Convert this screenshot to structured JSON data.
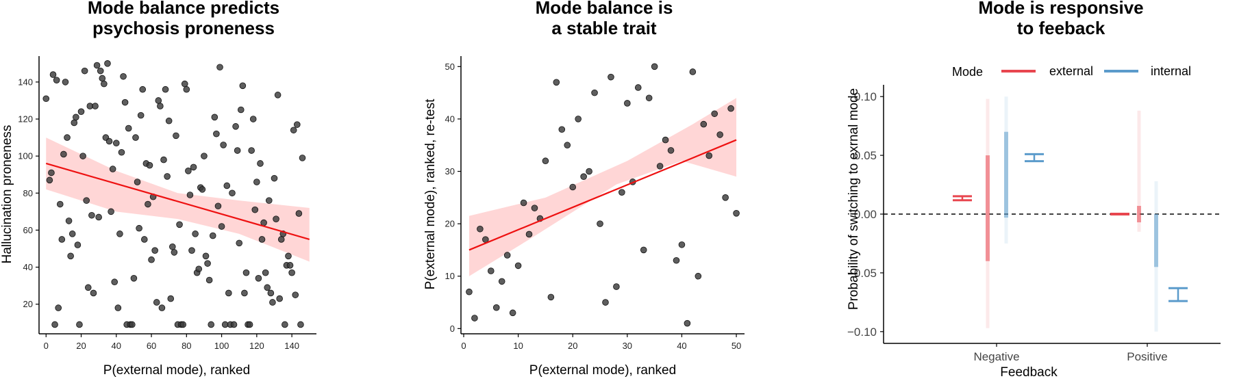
{
  "chart_data": [
    {
      "type": "scatter",
      "title": [
        "Mode balance predicts",
        "psychosis proneness"
      ],
      "xlabel": "P(external mode), ranked",
      "ylabel": "Hallucination proneness",
      "xlim": [
        -4,
        154
      ],
      "ylim": [
        4,
        154
      ],
      "xticks": [
        0,
        20,
        40,
        60,
        80,
        100,
        120,
        140
      ],
      "yticks": [
        20,
        40,
        60,
        80,
        100,
        120,
        140
      ],
      "points": [
        [
          0,
          131
        ],
        [
          2,
          87
        ],
        [
          3,
          91
        ],
        [
          4,
          144
        ],
        [
          5,
          9
        ],
        [
          6,
          141
        ],
        [
          7,
          18
        ],
        [
          8,
          74
        ],
        [
          9,
          55
        ],
        [
          10,
          101
        ],
        [
          11,
          140
        ],
        [
          12,
          110
        ],
        [
          13,
          65
        ],
        [
          14,
          46
        ],
        [
          15,
          58
        ],
        [
          16,
          118
        ],
        [
          17,
          121
        ],
        [
          18,
          52
        ],
        [
          19,
          9
        ],
        [
          20,
          124
        ],
        [
          21,
          100
        ],
        [
          22,
          146
        ],
        [
          23,
          76
        ],
        [
          24,
          29
        ],
        [
          25,
          127
        ],
        [
          26,
          68
        ],
        [
          27,
          26
        ],
        [
          28,
          127
        ],
        [
          29,
          149
        ],
        [
          30,
          67
        ],
        [
          31,
          146
        ],
        [
          32,
          142
        ],
        [
          33,
          139
        ],
        [
          34,
          110
        ],
        [
          35,
          150
        ],
        [
          36,
          108
        ],
        [
          37,
          70
        ],
        [
          38,
          93
        ],
        [
          39,
          32
        ],
        [
          40,
          107
        ],
        [
          41,
          18
        ],
        [
          42,
          58
        ],
        [
          43,
          102
        ],
        [
          44,
          143
        ],
        [
          45,
          129
        ],
        [
          46,
          9
        ],
        [
          47,
          115
        ],
        [
          48,
          9
        ],
        [
          49,
          9
        ],
        [
          50,
          34
        ],
        [
          51,
          110
        ],
        [
          52,
          86
        ],
        [
          53,
          61
        ],
        [
          54,
          122
        ],
        [
          55,
          136
        ],
        [
          56,
          55
        ],
        [
          57,
          96
        ],
        [
          58,
          74
        ],
        [
          59,
          95
        ],
        [
          60,
          44
        ],
        [
          61,
          78
        ],
        [
          62,
          49
        ],
        [
          63,
          21
        ],
        [
          64,
          130
        ],
        [
          65,
          127
        ],
        [
          66,
          18
        ],
        [
          67,
          98
        ],
        [
          68,
          136
        ],
        [
          69,
          89
        ],
        [
          70,
          119
        ],
        [
          71,
          23
        ],
        [
          72,
          51
        ],
        [
          73,
          48
        ],
        [
          74,
          111
        ],
        [
          75,
          9
        ],
        [
          76,
          63
        ],
        [
          77,
          9
        ],
        [
          78,
          9
        ],
        [
          79,
          139
        ],
        [
          80,
          136
        ],
        [
          81,
          92
        ],
        [
          82,
          79
        ],
        [
          83,
          49
        ],
        [
          84,
          94
        ],
        [
          85,
          58
        ],
        [
          86,
          37
        ],
        [
          87,
          39
        ],
        [
          88,
          83
        ],
        [
          89,
          82
        ],
        [
          90,
          100
        ],
        [
          91,
          46
        ],
        [
          92,
          42
        ],
        [
          93,
          33
        ],
        [
          94,
          9
        ],
        [
          95,
          57
        ],
        [
          96,
          121
        ],
        [
          97,
          112
        ],
        [
          98,
          73
        ],
        [
          99,
          148
        ],
        [
          100,
          62
        ],
        [
          101,
          106
        ],
        [
          102,
          9
        ],
        [
          103,
          84
        ],
        [
          104,
          26
        ],
        [
          105,
          9
        ],
        [
          106,
          80
        ],
        [
          107,
          9
        ],
        [
          108,
          116
        ],
        [
          109,
          103
        ],
        [
          110,
          53
        ],
        [
          111,
          125
        ],
        [
          112,
          138
        ],
        [
          113,
          26
        ],
        [
          114,
          37
        ],
        [
          115,
          9
        ],
        [
          116,
          9
        ],
        [
          117,
          103
        ],
        [
          118,
          120
        ],
        [
          119,
          71
        ],
        [
          120,
          86
        ],
        [
          121,
          34
        ],
        [
          122,
          96
        ],
        [
          123,
          55
        ],
        [
          124,
          64
        ],
        [
          125,
          37
        ],
        [
          126,
          29
        ],
        [
          127,
          76
        ],
        [
          128,
          26
        ],
        [
          129,
          21
        ],
        [
          130,
          88
        ],
        [
          131,
          66
        ],
        [
          132,
          133
        ],
        [
          133,
          23
        ],
        [
          134,
          55
        ],
        [
          135,
          58
        ],
        [
          136,
          9
        ],
        [
          137,
          41
        ],
        [
          138,
          46
        ],
        [
          139,
          41
        ],
        [
          140,
          37
        ],
        [
          141,
          114
        ],
        [
          142,
          25
        ],
        [
          143,
          117
        ],
        [
          144,
          69
        ],
        [
          145,
          9
        ],
        [
          146,
          99
        ]
      ],
      "fit": {
        "x": [
          0,
          150
        ],
        "y": [
          96,
          55
        ]
      },
      "ci_upper": [
        [
          0,
          110
        ],
        [
          40,
          92
        ],
        [
          75,
          80
        ],
        [
          110,
          76
        ],
        [
          150,
          72
        ]
      ],
      "ci_lower": [
        [
          0,
          82
        ],
        [
          40,
          70
        ],
        [
          75,
          66
        ],
        [
          110,
          58
        ],
        [
          150,
          43
        ]
      ]
    },
    {
      "type": "scatter",
      "title": [
        "Mode balance is",
        "a stable trait"
      ],
      "xlabel": "P(external mode), ranked",
      "ylabel": "P(external mode), ranked, re-test",
      "xlim": [
        -0.5,
        51.5
      ],
      "ylim": [
        -1,
        52
      ],
      "xticks": [
        0,
        10,
        20,
        30,
        40,
        50
      ],
      "yticks": [
        0,
        10,
        20,
        30,
        40,
        50
      ],
      "points": [
        [
          1,
          7
        ],
        [
          2,
          2
        ],
        [
          3,
          19
        ],
        [
          4,
          17
        ],
        [
          5,
          11
        ],
        [
          6,
          4
        ],
        [
          7,
          9
        ],
        [
          8,
          14
        ],
        [
          9,
          3
        ],
        [
          10,
          12
        ],
        [
          11,
          24
        ],
        [
          12,
          18
        ],
        [
          13,
          23
        ],
        [
          14,
          21
        ],
        [
          15,
          32
        ],
        [
          16,
          6
        ],
        [
          17,
          47
        ],
        [
          18,
          38
        ],
        [
          19,
          35
        ],
        [
          20,
          27
        ],
        [
          21,
          40
        ],
        [
          22,
          29
        ],
        [
          23,
          30
        ],
        [
          24,
          45
        ],
        [
          25,
          20
        ],
        [
          26,
          5
        ],
        [
          27,
          48
        ],
        [
          28,
          8
        ],
        [
          29,
          26
        ],
        [
          30,
          43
        ],
        [
          31,
          28
        ],
        [
          32,
          46
        ],
        [
          33,
          15
        ],
        [
          34,
          44
        ],
        [
          35,
          50
        ],
        [
          36,
          31
        ],
        [
          37,
          36
        ],
        [
          38,
          34
        ],
        [
          39,
          13
        ],
        [
          40,
          16
        ],
        [
          41,
          1
        ],
        [
          42,
          49
        ],
        [
          43,
          10
        ],
        [
          44,
          39
        ],
        [
          45,
          33
        ],
        [
          46,
          41
        ],
        [
          47,
          37
        ],
        [
          48,
          25
        ],
        [
          49,
          42
        ],
        [
          50,
          22
        ]
      ],
      "fit": {
        "x": [
          1,
          50
        ],
        "y": [
          15,
          36
        ]
      },
      "ci_upper": [
        [
          1,
          21.5
        ],
        [
          15,
          25
        ],
        [
          30,
          32
        ],
        [
          42,
          39
        ],
        [
          50,
          44
        ]
      ],
      "ci_lower": [
        [
          1,
          10
        ],
        [
          12,
          17
        ],
        [
          28,
          27.5
        ],
        [
          40,
          32
        ],
        [
          50,
          29
        ]
      ]
    },
    {
      "type": "scatter",
      "title": [
        "Mode is responsive",
        "to feeback"
      ],
      "xlabel": "Feedback",
      "ylabel": "Probability of switching to exrnal mode",
      "categories": [
        "Negative",
        "Positive"
      ],
      "ylim": [
        -0.11,
        0.11
      ],
      "yticks": [
        -0.1,
        -0.05,
        0.0,
        0.05,
        0.1
      ],
      "ytick_labels": [
        "−0.10",
        "−0.05",
        "0.00",
        "0.05",
        "0.10"
      ],
      "legend": {
        "title": "Mode",
        "entries": [
          "external",
          "internal"
        ],
        "placement": "top"
      },
      "colors": {
        "external": "#e8464f",
        "internal": "#5b9bcb",
        "ci_band": "#ffd6d6",
        "points": "#3a3a3a",
        "fit": "#ee1111"
      },
      "series": [
        {
          "name": "external",
          "mean": [
            0.0135,
            0.0
          ],
          "ci": [
            [
              0.0118,
              0.0152
            ],
            [
              -0.0003,
              0.0003
            ]
          ],
          "spread": [
            [
              -0.097,
              0.098
            ],
            [
              -0.015,
              0.088
            ]
          ],
          "core": [
            [
              -0.04,
              0.05
            ],
            [
              -0.007,
              0.007
            ]
          ]
        },
        {
          "name": "internal",
          "mean": [
            0.048,
            -0.068
          ],
          "ci": [
            [
              0.045,
              0.051
            ],
            [
              -0.074,
              -0.063
            ]
          ],
          "spread": [
            [
              -0.025,
              0.1
            ],
            [
              -0.1,
              0.028
            ]
          ],
          "core": [
            [
              -0.003,
              0.07
            ],
            [
              -0.045,
              0.0
            ]
          ]
        }
      ]
    }
  ]
}
